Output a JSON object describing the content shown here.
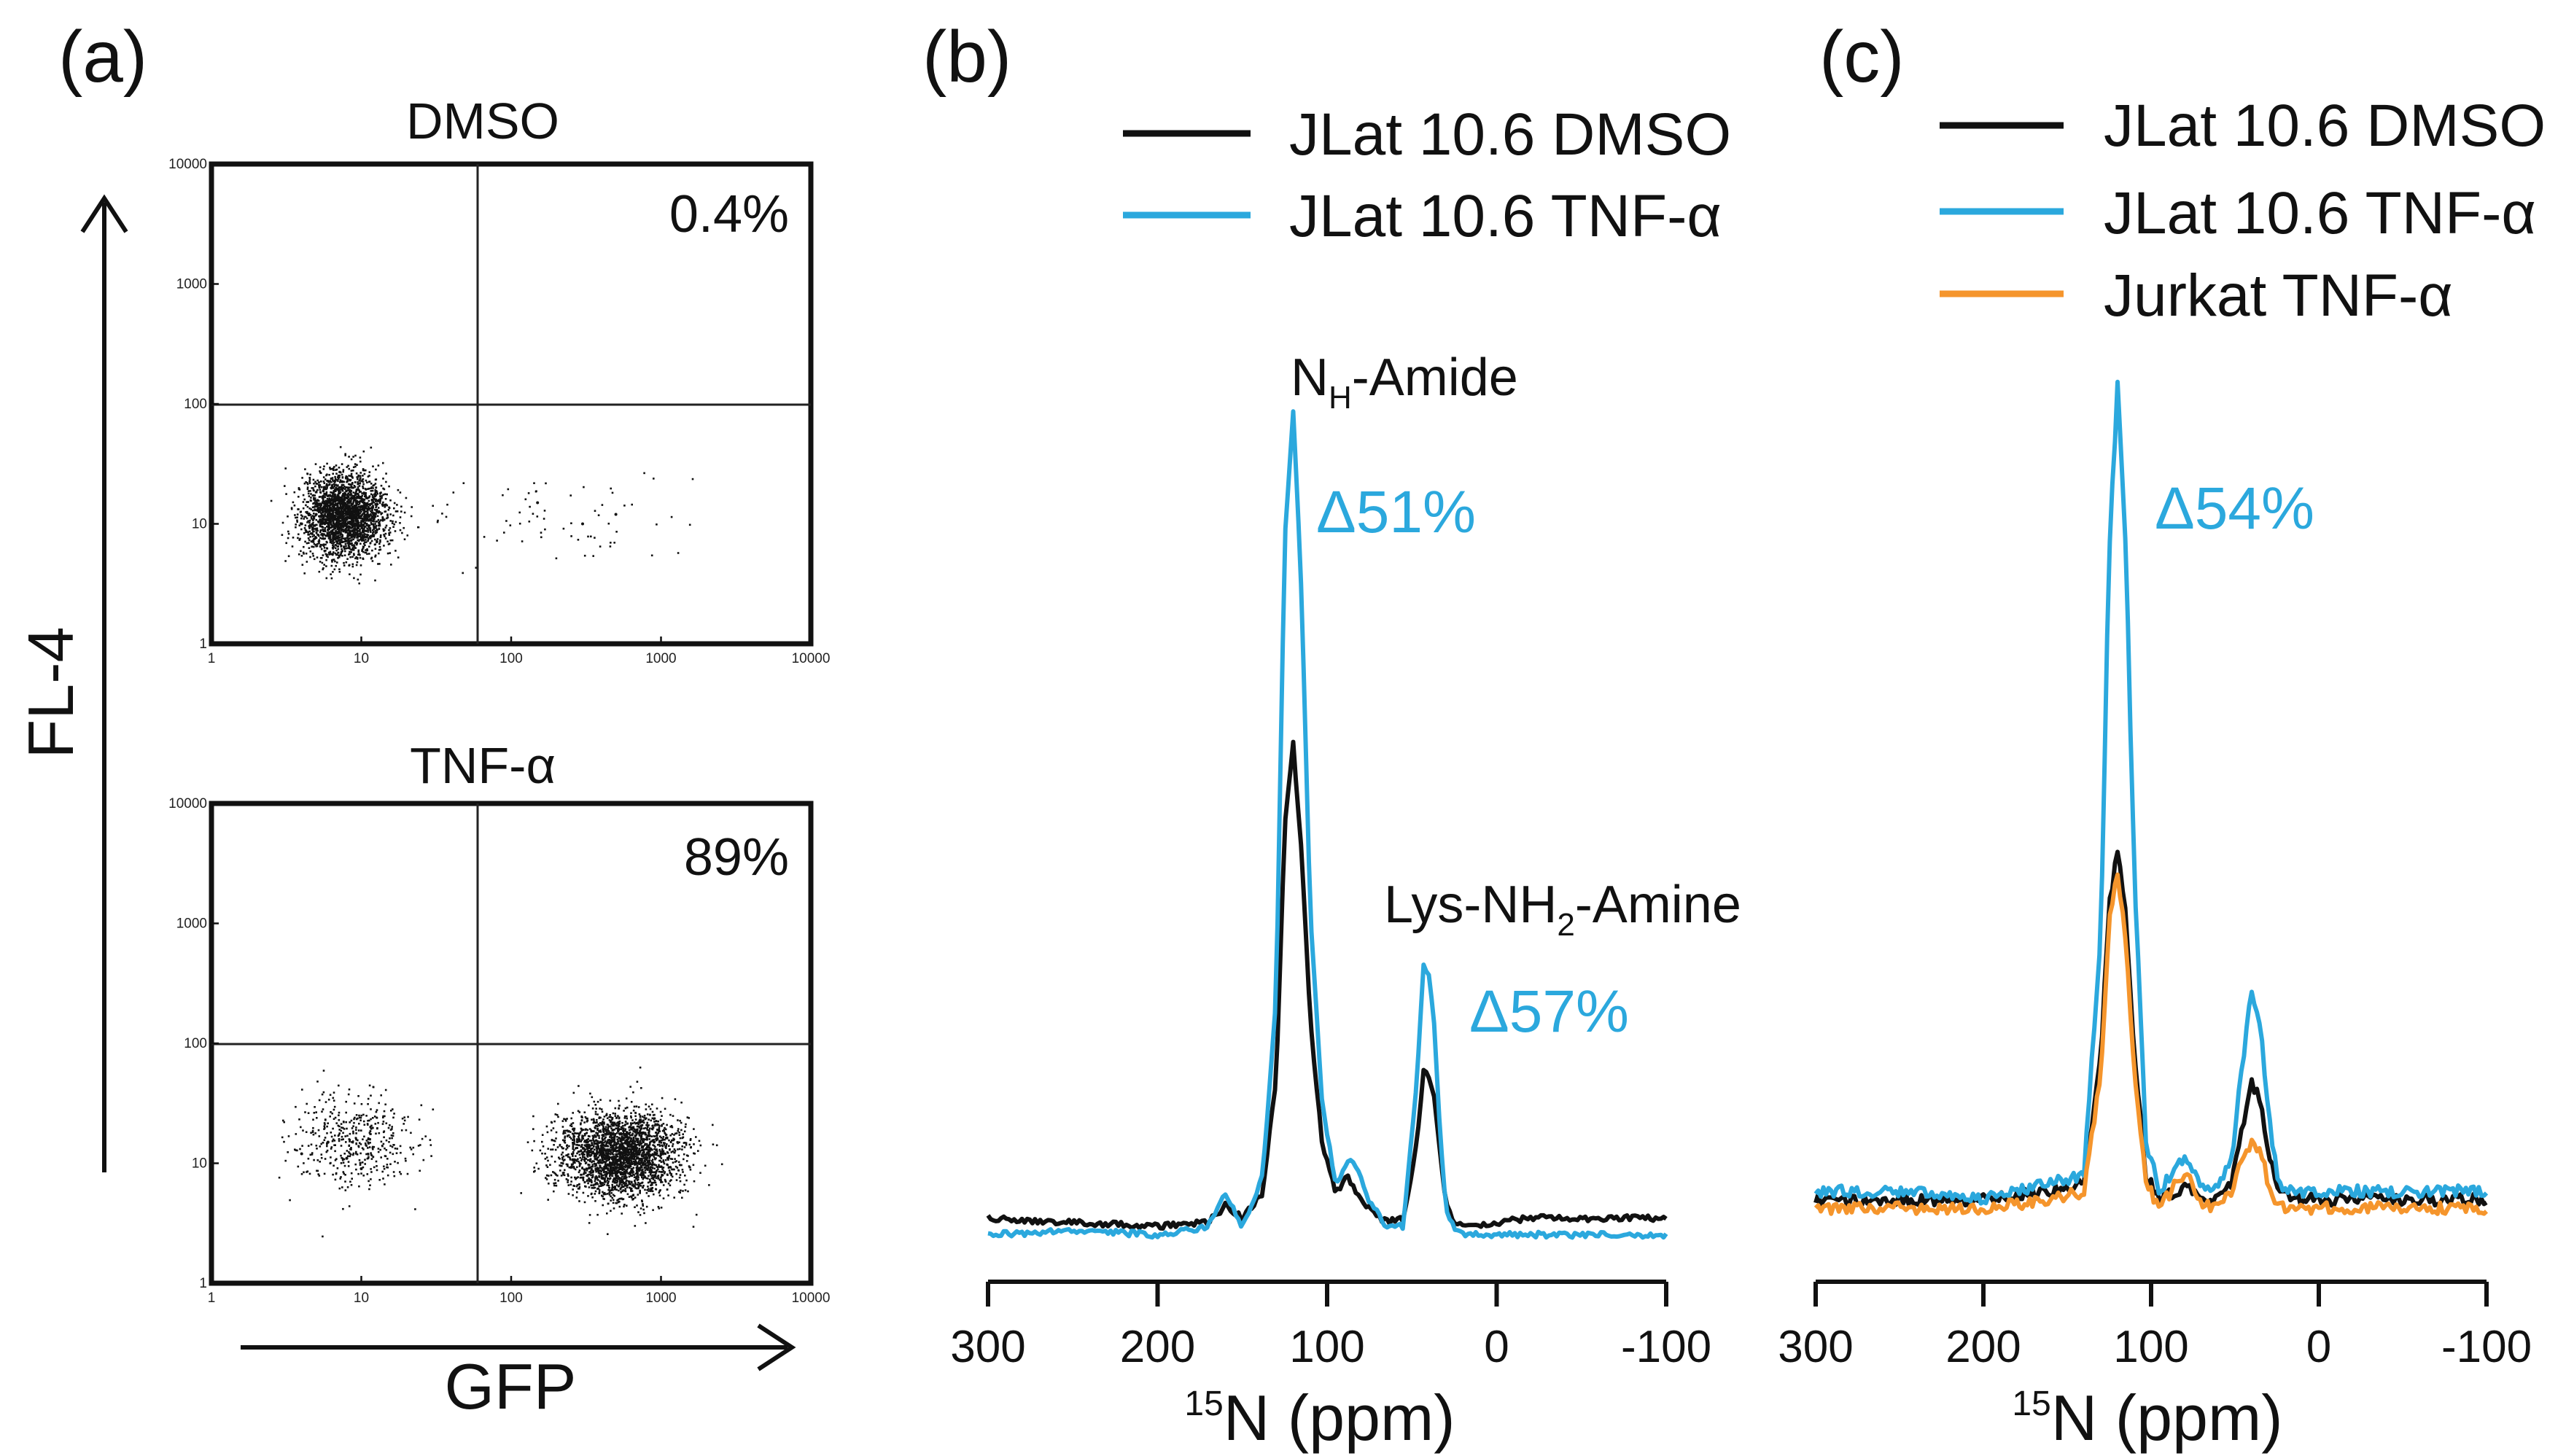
{
  "colors": {
    "black": "#111111",
    "blue": "#2ba8dd",
    "orange": "#f5952c"
  },
  "panel_a": {
    "label": "(a)",
    "y_axis_label": "FL-4",
    "x_axis_label": "GFP",
    "tick_labels": [
      "1",
      "10",
      "100",
      "1000",
      "10000"
    ],
    "plots": [
      {
        "title": "DMSO",
        "percent": "0.4%"
      },
      {
        "title": "TNF-α",
        "percent": "89%"
      }
    ]
  },
  "panel_b": {
    "label": "(b)",
    "legend": [
      "JLat 10.6 DMSO",
      "JLat 10.6 TNF-α"
    ],
    "peak1_main": "N",
    "peak1_sub": "H",
    "peak1_rest": "-Amide",
    "peak1_delta": "Δ51%",
    "peak2_main": "Lys-NH",
    "peak2_sub": "2",
    "peak2_rest": "-Amine",
    "peak2_delta": "Δ57%",
    "xaxis_sup": "15",
    "xaxis_label": "N (ppm)"
  },
  "panel_c": {
    "label": "(c)",
    "legend": [
      "JLat 10.6 DMSO",
      "JLat 10.6 TNF-α",
      "Jurkat TNF-α"
    ],
    "delta": "Δ54%",
    "xaxis_sup": "15",
    "xaxis_label": "N (ppm)"
  },
  "chart_data": [
    {
      "type": "scatter",
      "title": "DMSO",
      "xlabel": "GFP",
      "ylabel": "FL-4",
      "xscale": "log",
      "yscale": "log",
      "xlim": [
        1,
        10000
      ],
      "ylim": [
        1,
        10000
      ],
      "gate_x": 60,
      "gate_y": 100,
      "annotation": "0.4%",
      "x": [
        4,
        5,
        6,
        7,
        8,
        9,
        10,
        11,
        12,
        150,
        300,
        500
      ],
      "y": [
        10,
        12,
        15,
        13,
        11,
        9,
        14,
        12,
        8,
        15,
        10,
        12
      ]
    },
    {
      "type": "scatter",
      "title": "TNF-α",
      "xlabel": "GFP",
      "ylabel": "FL-4",
      "xscale": "log",
      "yscale": "log",
      "xlim": [
        1,
        10000
      ],
      "ylim": [
        1,
        10000
      ],
      "gate_x": 60,
      "gate_y": 100,
      "annotation": "89%",
      "x": [
        4,
        6,
        8,
        10,
        300,
        400,
        500,
        600,
        700,
        800,
        900,
        1000
      ],
      "y": [
        12,
        15,
        11,
        9,
        12,
        14,
        10,
        13,
        9,
        11,
        15,
        12
      ]
    },
    {
      "type": "line",
      "xlabel": "15N (ppm)",
      "xlim": [
        300,
        -100
      ],
      "xticks": [
        300,
        200,
        100,
        0,
        -100
      ],
      "series": [
        {
          "name": "JLat 10.6 DMSO",
          "x": [
            300,
            250,
            200,
            170,
            160,
            150,
            138,
            130,
            125,
            120,
            115,
            110,
            103,
            95,
            88,
            82,
            75,
            65,
            55,
            47,
            43,
            40,
            37,
            33,
            30,
            25,
            18,
            10,
            0,
            -20,
            -50,
            -100
          ],
          "y": [
            0.03,
            0.025,
            0.02,
            0.025,
            0.045,
            0.03,
            0.06,
            0.2,
            0.5,
            0.6,
            0.47,
            0.27,
            0.12,
            0.06,
            0.08,
            0.06,
            0.04,
            0.025,
            0.03,
            0.12,
            0.21,
            0.2,
            0.18,
            0.1,
            0.05,
            0.025,
            0.02,
            0.02,
            0.025,
            0.03,
            0.03,
            0.03
          ]
        },
        {
          "name": "JLat 10.6 TNF-α",
          "x": [
            300,
            250,
            200,
            170,
            160,
            150,
            138,
            130,
            125,
            120,
            115,
            110,
            103,
            95,
            88,
            82,
            75,
            65,
            55,
            47,
            43,
            40,
            37,
            33,
            30,
            25,
            18,
            10,
            0,
            -20,
            -50,
            -100
          ],
          "y": [
            0.01,
            0.015,
            0.01,
            0.02,
            0.06,
            0.02,
            0.08,
            0.3,
            0.85,
            1.0,
            0.78,
            0.4,
            0.17,
            0.07,
            0.1,
            0.09,
            0.05,
            0.02,
            0.02,
            0.2,
            0.34,
            0.32,
            0.27,
            0.12,
            0.04,
            0.02,
            0.01,
            0.01,
            0.01,
            0.01,
            0.01,
            0.01
          ]
        }
      ]
    },
    {
      "type": "line",
      "xlabel": "15N (ppm)",
      "xlim": [
        300,
        -100
      ],
      "xticks": [
        300,
        200,
        100,
        0,
        -100
      ],
      "series": [
        {
          "name": "JLat 10.6 DMSO",
          "x": [
            300,
            250,
            200,
            160,
            140,
            130,
            125,
            120,
            115,
            110,
            103,
            95,
            85,
            78,
            72,
            62,
            52,
            45,
            40,
            35,
            30,
            24,
            15,
            0,
            -30,
            -60,
            -100
          ],
          "y": [
            0.03,
            0.03,
            0.03,
            0.04,
            0.05,
            0.2,
            0.38,
            0.45,
            0.37,
            0.2,
            0.06,
            0.03,
            0.04,
            0.05,
            0.03,
            0.03,
            0.05,
            0.12,
            0.17,
            0.15,
            0.09,
            0.04,
            0.03,
            0.03,
            0.03,
            0.03,
            0.03
          ]
        },
        {
          "name": "JLat 10.6 TNF-α",
          "x": [
            300,
            250,
            200,
            160,
            140,
            130,
            125,
            120,
            115,
            110,
            103,
            95,
            85,
            78,
            72,
            62,
            52,
            45,
            40,
            35,
            30,
            24,
            15,
            0,
            -30,
            -60,
            -100
          ],
          "y": [
            0.04,
            0.04,
            0.03,
            0.05,
            0.06,
            0.35,
            0.8,
            1.0,
            0.8,
            0.42,
            0.1,
            0.04,
            0.07,
            0.08,
            0.05,
            0.04,
            0.08,
            0.2,
            0.28,
            0.24,
            0.13,
            0.05,
            0.04,
            0.04,
            0.04,
            0.04,
            0.04
          ]
        },
        {
          "name": "Jurkat TNF-α",
          "x": [
            300,
            250,
            200,
            160,
            140,
            130,
            125,
            120,
            115,
            110,
            103,
            95,
            85,
            78,
            72,
            62,
            52,
            45,
            40,
            35,
            30,
            24,
            15,
            0,
            -30,
            -60,
            -100
          ],
          "y": [
            0.02,
            0.02,
            0.02,
            0.03,
            0.04,
            0.18,
            0.36,
            0.42,
            0.34,
            0.18,
            0.05,
            0.02,
            0.05,
            0.06,
            0.03,
            0.02,
            0.04,
            0.08,
            0.1,
            0.09,
            0.05,
            0.02,
            0.02,
            0.02,
            0.02,
            0.02,
            0.02
          ]
        }
      ]
    }
  ]
}
